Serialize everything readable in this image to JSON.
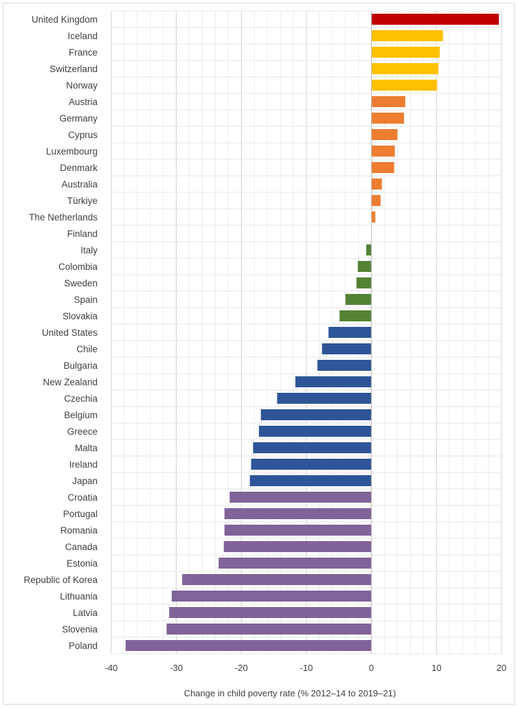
{
  "chart_data": {
    "type": "bar",
    "orientation": "horizontal",
    "title": "",
    "xlabel": "Change in child poverty rate (% 2012–14 to 2019–21)",
    "ylabel": "",
    "xlim": [
      -40,
      20
    ],
    "xticks": [
      -40,
      -30,
      -20,
      -10,
      0,
      10,
      20
    ],
    "xtick_labels": [
      "-40",
      "-30",
      "-20",
      "-10",
      "0",
      "10",
      "20"
    ],
    "grid": true,
    "legend": "none",
    "categories": [
      "United Kingdom",
      "Iceland",
      "France",
      "Switzerland",
      "Norway",
      "Austria",
      "Germany",
      "Cyprus",
      "Luxembourg",
      "Denmark",
      "Australia",
      "Türkiye",
      "The Netherlands",
      "Finland",
      "Italy",
      "Colombia",
      "Sweden",
      "Spain",
      "Slovakia",
      "United States",
      "Chile",
      "Bulgaria",
      "New Zealand",
      "Czechia",
      "Belgium",
      "Greece",
      "Malta",
      "Ireland",
      "Japan",
      "Croatia",
      "Portugal",
      "Romania",
      "Canada",
      "Estonia",
      "Republic of Korea",
      "Lithuania",
      "Latvia",
      "Slovenia",
      "Poland"
    ],
    "values": [
      19.6,
      11.0,
      10.5,
      10.3,
      10.1,
      5.2,
      5.0,
      4.0,
      3.6,
      3.5,
      1.6,
      1.4,
      0.6,
      0.0,
      -0.8,
      -2.1,
      -2.3,
      -4.0,
      -4.9,
      -6.6,
      -7.6,
      -8.3,
      -11.7,
      -14.5,
      -17.0,
      -17.3,
      -18.2,
      -18.5,
      -18.7,
      -21.8,
      -22.6,
      -22.6,
      -22.7,
      -23.5,
      -29.1,
      -30.7,
      -31.1,
      -31.5,
      -37.8
    ],
    "colors": {
      "top": "#c00000",
      "high": "#ffc000",
      "moderate": "#ed7d31",
      "small_decrease": "#548235",
      "medium_decrease": "#2e5597",
      "large_decrease": "#7f6399"
    },
    "bar_color_groups": [
      "top",
      "high",
      "high",
      "high",
      "high",
      "moderate",
      "moderate",
      "moderate",
      "moderate",
      "moderate",
      "moderate",
      "moderate",
      "moderate",
      "moderate",
      "small_decrease",
      "small_decrease",
      "small_decrease",
      "small_decrease",
      "small_decrease",
      "medium_decrease",
      "medium_decrease",
      "medium_decrease",
      "medium_decrease",
      "medium_decrease",
      "medium_decrease",
      "medium_decrease",
      "medium_decrease",
      "medium_decrease",
      "medium_decrease",
      "large_decrease",
      "large_decrease",
      "large_decrease",
      "large_decrease",
      "large_decrease",
      "large_decrease",
      "large_decrease",
      "large_decrease",
      "large_decrease",
      "large_decrease"
    ]
  }
}
